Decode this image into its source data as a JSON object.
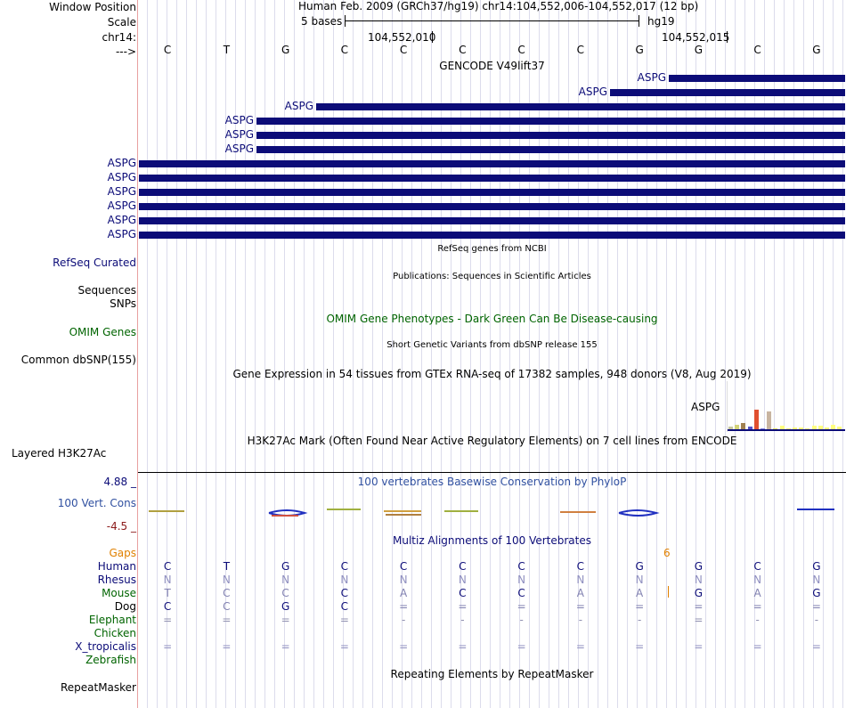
{
  "header": {
    "window_position_label": "Window Position",
    "scale_label": "Scale",
    "chrom_label": "chr14:",
    "strand_label": "--->",
    "title": "Human Feb. 2009 (GRCh37/hg19)   chr14:104,552,006-104,552,017 (12 bp)",
    "scale_text": "5 bases",
    "assembly": "hg19",
    "coord_a": "104,552,010",
    "coord_b": "104,552,015"
  },
  "sequence": [
    "C",
    "T",
    "G",
    "C",
    "C",
    "C",
    "C",
    "C",
    "G",
    "G",
    "C",
    "G"
  ],
  "gencode": {
    "title": "GENCODE V49lift37",
    "gene_label": "ASPG",
    "rows": 12
  },
  "tracks": {
    "refseq_title": "RefSeq genes from NCBI",
    "refseq_label": "RefSeq Curated",
    "pubs_title": "Publications: Sequences in Scientific Articles",
    "sequences_label": "Sequences",
    "snps_label": "SNPs",
    "omim_title": "OMIM Gene Phenotypes - Dark Green Can Be Disease-causing",
    "omim_label": "OMIM Genes",
    "dbsnp_title": "Short Genetic Variants from dbSNP release 155",
    "dbsnp_label": "Common dbSNP(155)",
    "gtex_title": "Gene Expression in 54 tissues from GTEx RNA-seq of 17382 samples, 948 donors (V8, Aug 2019)",
    "gtex_gene": "ASPG",
    "h3k27_title": "H3K27Ac Mark (Often Found Near Active Regulatory Elements) on 7 cell lines from ENCODE",
    "h3k27_label": "Layered H3K27Ac",
    "cons_max": "4.88 _",
    "cons_label": "100 Vert. Cons",
    "cons_min": "-4.5 _",
    "phylop_title": "100 vertebrates Basewise Conservation by PhyloP",
    "multiz_title": "Multiz Alignments of 100 Vertebrates",
    "gaps_label": "Gaps",
    "gap_count": "6",
    "repeat_title": "Repeating Elements by RepeatMasker",
    "repeat_label": "RepeatMasker"
  },
  "gtex_bars": [
    {
      "value": 3,
      "color": "#c8c8a0"
    },
    {
      "value": 5,
      "color": "#d2d278"
    },
    {
      "value": 7,
      "color": "#a08050"
    },
    {
      "value": 3,
      "color": "#5050c8"
    },
    {
      "value": 22,
      "color": "#e05030"
    },
    {
      "value": 1,
      "color": "#8080e0"
    },
    {
      "value": 20,
      "color": "#c8b4a0"
    },
    {
      "value": 1,
      "color": "#e0e060"
    },
    {
      "value": 4,
      "color": "#ffff80"
    },
    {
      "value": 1,
      "color": "#ffff80"
    },
    {
      "value": 2,
      "color": "#ffff80"
    },
    {
      "value": 2,
      "color": "#ffff80"
    },
    {
      "value": 1,
      "color": "#ffff80"
    },
    {
      "value": 4,
      "color": "#ffff80"
    },
    {
      "value": 4,
      "color": "#ffff80"
    },
    {
      "value": 2,
      "color": "#ffff80"
    },
    {
      "value": 5,
      "color": "#ffff80"
    },
    {
      "value": 3,
      "color": "#ffff80"
    }
  ],
  "alignments": [
    {
      "species": "Human",
      "color": "#0c0c78",
      "bases": [
        "C",
        "T",
        "G",
        "C",
        "C",
        "C",
        "C",
        "C",
        "G",
        "G",
        "C",
        "G"
      ],
      "base_color": "#0c0c78"
    },
    {
      "species": "Rhesus",
      "color": "#0c0c78",
      "bases": [
        "N",
        "N",
        "N",
        "N",
        "N",
        "N",
        "N",
        "N",
        "N",
        "N",
        "N",
        "N"
      ],
      "base_color": "#9090c0"
    },
    {
      "species": "Mouse",
      "color": "#006400",
      "bases": [
        "T",
        "C",
        "C",
        "C",
        "A",
        "C",
        "C",
        "A",
        "A",
        "G",
        "A",
        "G"
      ],
      "base_color": "#8080b0"
    },
    {
      "species": "Dog",
      "color": "#000000",
      "bases": [
        "C",
        "C",
        "G",
        "C",
        "=",
        "=",
        "=",
        "=",
        "=",
        "=",
        "=",
        "="
      ],
      "base_color": "#8080b0"
    },
    {
      "species": "Elephant",
      "color": "#006400",
      "bases": [
        "=",
        "=",
        "=",
        "=",
        "-",
        "-",
        "-",
        "-",
        "-",
        "=",
        "-",
        "-"
      ],
      "base_color": "#9090b0"
    },
    {
      "species": "Chicken",
      "color": "#006400",
      "bases": [
        "",
        "",
        "",
        "",
        "",
        "",
        "",
        "",
        "",
        "",
        "",
        ""
      ],
      "base_color": "#9090b0"
    },
    {
      "species": "X_tropicalis",
      "color": "#0c0c78",
      "bases": [
        "=",
        "=",
        "=",
        "=",
        "=",
        "=",
        "=",
        "=",
        "=",
        "=",
        "=",
        "="
      ],
      "base_color": "#9090c0"
    },
    {
      "species": "Zebrafish",
      "color": "#006400",
      "bases": [
        "",
        "",
        "",
        "",
        "",
        "",
        "",
        "",
        "",
        "",
        "",
        ""
      ],
      "base_color": "#9090b0"
    }
  ]
}
